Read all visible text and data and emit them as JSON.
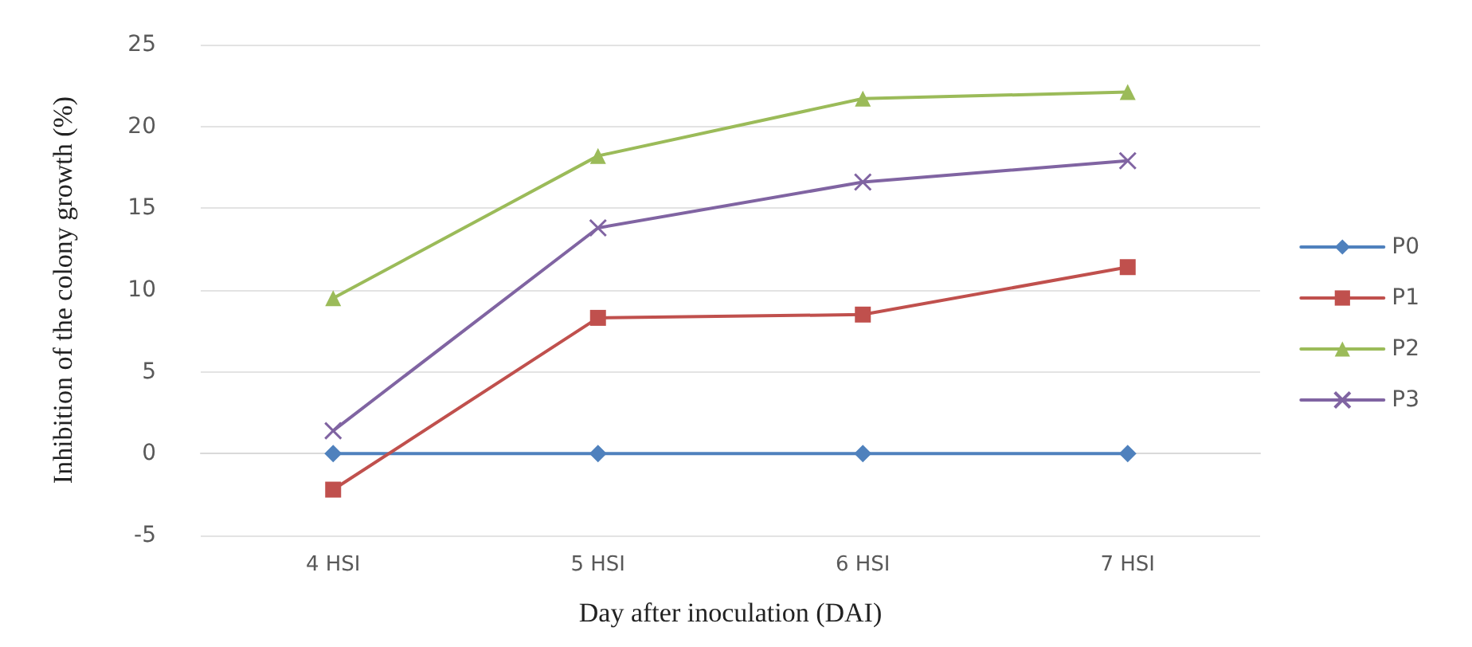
{
  "chart_data": {
    "type": "line",
    "xlabel": "Day after inoculation (DAI)",
    "ylabel": "Inhibition of the colony growth (%)",
    "categories": [
      "4 HSI",
      "5 HSI",
      "6 HSI",
      "7 HSI"
    ],
    "series": [
      {
        "name": "P0",
        "color": "#4f81bd",
        "marker": "diamond",
        "values": [
          0,
          0,
          0,
          0
        ]
      },
      {
        "name": "P1",
        "color": "#c0504d",
        "marker": "square",
        "values": [
          -2.2,
          8.3,
          8.5,
          11.4
        ]
      },
      {
        "name": "P2",
        "color": "#9bbb59",
        "marker": "triangle",
        "values": [
          9.5,
          18.2,
          21.7,
          22.1
        ]
      },
      {
        "name": "P3",
        "color": "#8064a2",
        "marker": "cross",
        "values": [
          1.4,
          13.8,
          16.6,
          17.9
        ]
      }
    ],
    "ylim": [
      -5,
      25
    ],
    "yticks": [
      -5,
      0,
      5,
      10,
      15,
      20,
      25
    ],
    "grid": "y",
    "legend": "right"
  }
}
